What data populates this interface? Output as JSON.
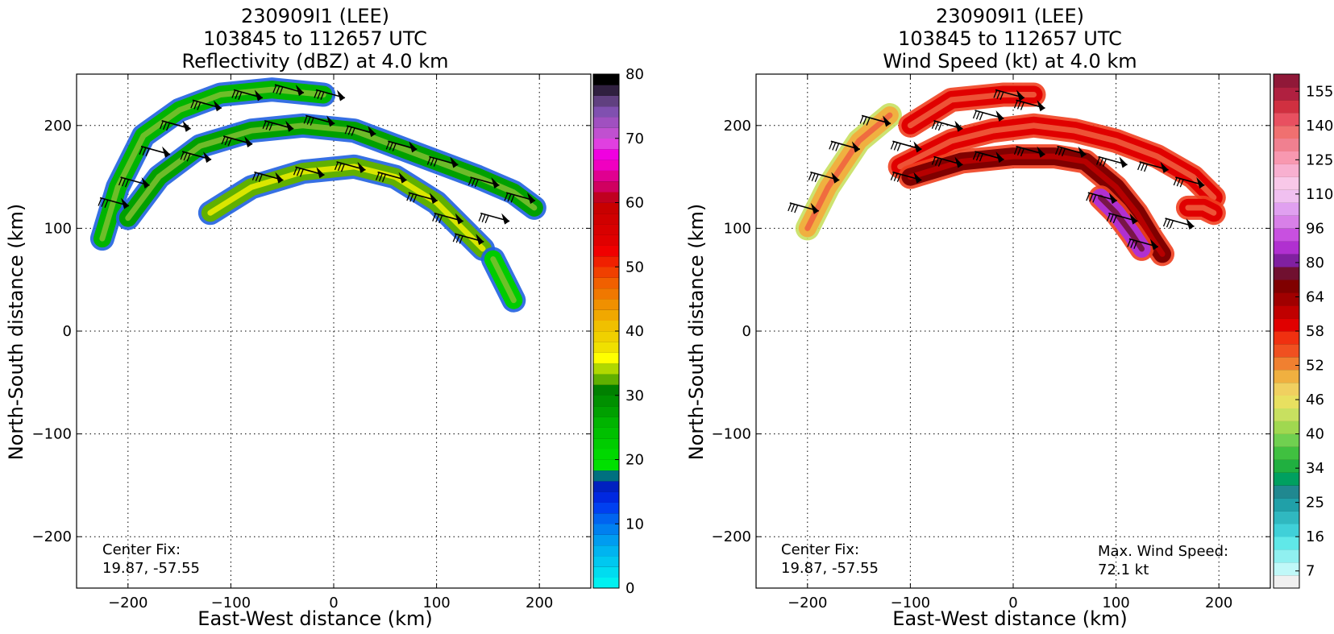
{
  "panels": [
    {
      "title_lines": [
        "230909I1 (LEE)",
        "103845 to 112657 UTC",
        "Reflectivity (dBZ) at 4.0 km"
      ],
      "xlabel": "East-West distance (km)",
      "ylabel": "North-South distance (km)",
      "center_fix_label": "Center Fix:",
      "center_fix_value": "19.87, -57.55",
      "colorbar_tick_labels": [
        "0",
        "10",
        "20",
        "30",
        "40",
        "50",
        "60",
        "70",
        "80"
      ]
    },
    {
      "title_lines": [
        "230909I1 (LEE)",
        "103845 to 112657 UTC",
        "Wind Speed (kt) at 4.0 km"
      ],
      "xlabel": "East-West distance (km)",
      "ylabel": "North-South distance (km)",
      "center_fix_label": "Center Fix:",
      "center_fix_value": "19.87, -57.55",
      "max_wind_label": "Max. Wind Speed:",
      "max_wind_value": "72.1 kt",
      "colorbar_tick_labels": [
        "7",
        "16",
        "25",
        "34",
        "40",
        "46",
        "52",
        "58",
        "64",
        "80",
        "96",
        "110",
        "125",
        "140",
        "155"
      ]
    }
  ],
  "chart_data": [
    {
      "type": "heatmap",
      "title": "230909I1 (LEE) 103845 to 112657 UTC Reflectivity (dBZ) at 4.0 km",
      "xlabel": "East-West distance (km)",
      "ylabel": "North-South distance (km)",
      "xlim": [
        -250,
        250
      ],
      "ylim": [
        -250,
        250
      ],
      "x_ticks": [
        -200,
        -100,
        0,
        100,
        200
      ],
      "y_ticks": [
        -200,
        -100,
        0,
        100,
        200
      ],
      "x_tick_labels": [
        "−200",
        "−100",
        "0",
        "100",
        "200"
      ],
      "y_tick_labels": [
        "−200",
        "−100",
        "0",
        "100",
        "200"
      ],
      "grid": true,
      "colorbar": {
        "range": [
          0,
          80
        ],
        "ticks": [
          0,
          10,
          20,
          30,
          40,
          50,
          60,
          70,
          80
        ],
        "colors": [
          "#00f0f0",
          "#00dcf0",
          "#00c8f0",
          "#00b4f0",
          "#009cf0",
          "#0080f0",
          "#0064f0",
          "#0040f0",
          "#0028e0",
          "#0020c0",
          "#007080",
          "#00e000",
          "#00d800",
          "#00cc00",
          "#00c000",
          "#00b400",
          "#00a000",
          "#009000",
          "#008000",
          "#60b000",
          "#b0d800",
          "#ffff00",
          "#f0e000",
          "#f0d000",
          "#f0c000",
          "#f0a800",
          "#f09000",
          "#f07800",
          "#f06000",
          "#f04000",
          "#f02000",
          "#f00000",
          "#e00000",
          "#d80000",
          "#d00000",
          "#c80000",
          "#c00020",
          "#d00060",
          "#e00090",
          "#f000c0",
          "#f000e0",
          "#e040e0",
          "#c050d0",
          "#a050c0",
          "#8050b0",
          "#604080",
          "#302040",
          "#000000"
        ]
      },
      "bands": [
        {
          "name": "outer arc",
          "dbz": 25,
          "points": [
            [
              -225,
              90
            ],
            [
              -210,
              140
            ],
            [
              -185,
              190
            ],
            [
              -150,
              215
            ],
            [
              -110,
              230
            ],
            [
              -60,
              235
            ],
            [
              -10,
              230
            ]
          ]
        },
        {
          "name": "middle arc",
          "dbz": 27,
          "points": [
            [
              -200,
              110
            ],
            [
              -170,
              150
            ],
            [
              -130,
              180
            ],
            [
              -80,
              195
            ],
            [
              -30,
              200
            ],
            [
              20,
              195
            ],
            [
              60,
              180
            ],
            [
              100,
              165
            ],
            [
              140,
              150
            ],
            [
              175,
              135
            ],
            [
              195,
              120
            ]
          ]
        },
        {
          "name": "inner arc",
          "dbz": 33,
          "points": [
            [
              -120,
              115
            ],
            [
              -80,
              140
            ],
            [
              -30,
              155
            ],
            [
              20,
              160
            ],
            [
              60,
              150
            ],
            [
              100,
              125
            ],
            [
              125,
              100
            ],
            [
              145,
              80
            ]
          ]
        },
        {
          "name": "south fragment",
          "dbz": 22,
          "points": [
            [
              155,
              70
            ],
            [
              165,
              50
            ],
            [
              175,
              30
            ]
          ]
        }
      ],
      "wind_barbs": [
        {
          "x": -210,
          "y": 125
        },
        {
          "x": -190,
          "y": 145
        },
        {
          "x": -170,
          "y": 175
        },
        {
          "x": -150,
          "y": 200
        },
        {
          "x": -120,
          "y": 220
        },
        {
          "x": -80,
          "y": 230
        },
        {
          "x": -40,
          "y": 235
        },
        {
          "x": 0,
          "y": 230
        },
        {
          "x": -130,
          "y": 170
        },
        {
          "x": -90,
          "y": 185
        },
        {
          "x": -50,
          "y": 200
        },
        {
          "x": -10,
          "y": 205
        },
        {
          "x": 30,
          "y": 195
        },
        {
          "x": 70,
          "y": 180
        },
        {
          "x": 110,
          "y": 165
        },
        {
          "x": 150,
          "y": 145
        },
        {
          "x": 185,
          "y": 130
        },
        {
          "x": -60,
          "y": 150
        },
        {
          "x": -20,
          "y": 155
        },
        {
          "x": 20,
          "y": 160
        },
        {
          "x": 60,
          "y": 150
        },
        {
          "x": 90,
          "y": 130
        },
        {
          "x": 115,
          "y": 110
        },
        {
          "x": 135,
          "y": 90
        },
        {
          "x": 160,
          "y": 110
        }
      ]
    },
    {
      "type": "heatmap",
      "title": "230909I1 (LEE) 103845 to 112657 UTC Wind Speed (kt) at 4.0 km",
      "xlabel": "East-West distance (km)",
      "ylabel": "North-South distance (km)",
      "xlim": [
        -250,
        250
      ],
      "ylim": [
        -250,
        250
      ],
      "x_ticks": [
        -200,
        -100,
        0,
        100,
        200
      ],
      "y_ticks": [
        -200,
        -100,
        0,
        100,
        200
      ],
      "x_tick_labels": [
        "−200",
        "−100",
        "0",
        "100",
        "200"
      ],
      "y_tick_labels": [
        "−200",
        "−100",
        "0",
        "100",
        "200"
      ],
      "grid": true,
      "max_wind_speed_kt": 72.1,
      "colorbar": {
        "ticks": [
          7,
          16,
          25,
          34,
          40,
          46,
          52,
          58,
          64,
          80,
          96,
          110,
          125,
          140,
          155
        ],
        "colors": [
          "#f0f0f0",
          "#c0f8f8",
          "#90f0f0",
          "#60e8e8",
          "#40d0d8",
          "#30b8c0",
          "#20a0a8",
          "#208890",
          "#00a060",
          "#20b040",
          "#40c040",
          "#70d050",
          "#a0d850",
          "#c8e060",
          "#e8e060",
          "#f0d060",
          "#f0b040",
          "#f08030",
          "#f05020",
          "#f03010",
          "#e00000",
          "#c00000",
          "#a00000",
          "#800000",
          "#701030",
          "#8020a0",
          "#b030d0",
          "#c850e0",
          "#d880e8",
          "#e0a0f0",
          "#f0c0f0",
          "#f8c8e8",
          "#f8b0d0",
          "#f898b0",
          "#f08090",
          "#f07070",
          "#e85060",
          "#d03040",
          "#b02040",
          "#901838"
        ]
      },
      "bands": [
        {
          "name": "outer arc",
          "speed_kt": 45,
          "points": [
            [
              -200,
              100
            ],
            [
              -180,
              140
            ],
            [
              -150,
              185
            ],
            [
              -120,
              210
            ]
          ]
        },
        {
          "name": "outer arc east",
          "speed_kt": 55,
          "points": [
            [
              -100,
              200
            ],
            [
              -60,
              225
            ],
            [
              -10,
              230
            ],
            [
              20,
              230
            ]
          ]
        },
        {
          "name": "middle arc",
          "speed_kt": 56,
          "points": [
            [
              -110,
              160
            ],
            [
              -60,
              185
            ],
            [
              -20,
              195
            ],
            [
              20,
              200
            ],
            [
              60,
              195
            ],
            [
              100,
              185
            ],
            [
              140,
              170
            ],
            [
              175,
              150
            ],
            [
              195,
              130
            ]
          ]
        },
        {
          "name": "inner arc",
          "speed_kt": 62,
          "points": [
            [
              -100,
              150
            ],
            [
              -50,
              165
            ],
            [
              0,
              170
            ],
            [
              40,
              170
            ],
            [
              70,
              165
            ],
            [
              100,
              140
            ],
            [
              120,
              115
            ],
            [
              135,
              90
            ],
            [
              145,
              75
            ]
          ]
        },
        {
          "name": "core max",
          "speed_kt": 70,
          "points": [
            [
              85,
              130
            ],
            [
              100,
              115
            ],
            [
              115,
              95
            ],
            [
              125,
              80
            ]
          ]
        },
        {
          "name": "east fragment",
          "speed_kt": 55,
          "points": [
            [
              170,
              120
            ],
            [
              185,
              120
            ],
            [
              195,
              115
            ]
          ]
        }
      ],
      "wind_barbs": [
        {
          "x": -200,
          "y": 120
        },
        {
          "x": -180,
          "y": 150
        },
        {
          "x": -160,
          "y": 180
        },
        {
          "x": -130,
          "y": 205
        },
        {
          "x": -100,
          "y": 180
        },
        {
          "x": -60,
          "y": 200
        },
        {
          "x": -20,
          "y": 210
        },
        {
          "x": 20,
          "y": 220
        },
        {
          "x": -100,
          "y": 150
        },
        {
          "x": -60,
          "y": 165
        },
        {
          "x": -20,
          "y": 170
        },
        {
          "x": 20,
          "y": 175
        },
        {
          "x": 60,
          "y": 175
        },
        {
          "x": 100,
          "y": 165
        },
        {
          "x": 140,
          "y": 160
        },
        {
          "x": 175,
          "y": 145
        },
        {
          "x": 0,
          "y": 230
        },
        {
          "x": 90,
          "y": 130
        },
        {
          "x": 110,
          "y": 110
        },
        {
          "x": 130,
          "y": 85
        },
        {
          "x": 165,
          "y": 105
        }
      ]
    }
  ]
}
